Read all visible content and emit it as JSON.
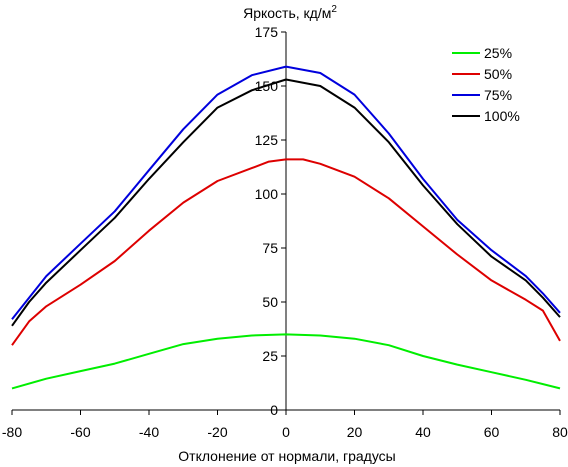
{
  "chart_data": {
    "type": "line",
    "title": "",
    "ylabel_main": "Яркость, кд/м",
    "ylabel_sup": "2",
    "xlabel": "Отклонение от нормали, градусы",
    "xlim": [
      -80,
      80
    ],
    "ylim": [
      0,
      175
    ],
    "xticks": [
      -80,
      -60,
      -40,
      -20,
      0,
      20,
      40,
      60,
      80
    ],
    "yticks": [
      0,
      25,
      50,
      75,
      100,
      125,
      150,
      175
    ],
    "legend_position": "top-right",
    "series": [
      {
        "name": "25%",
        "color": "#00ee00",
        "x": [
          -80,
          -70,
          -60,
          -50,
          -40,
          -30,
          -20,
          -10,
          0,
          10,
          20,
          30,
          40,
          50,
          60,
          70,
          80
        ],
        "y": [
          10,
          14.5,
          18,
          21.5,
          26,
          30.5,
          33,
          34.5,
          35,
          34.5,
          33,
          30,
          25,
          21,
          17.5,
          14,
          10
        ]
      },
      {
        "name": "50%",
        "color": "#dd0000",
        "x": [
          -80,
          -75,
          -70,
          -60,
          -50,
          -40,
          -30,
          -20,
          -10,
          -5,
          0,
          5,
          10,
          20,
          30,
          40,
          50,
          60,
          70,
          75,
          80
        ],
        "y": [
          30,
          41,
          48,
          58,
          69,
          83,
          96,
          106,
          112,
          115,
          116,
          116,
          114,
          108,
          98,
          85,
          72,
          60,
          51,
          46,
          32
        ]
      },
      {
        "name": "75%",
        "color": "#0000dd",
        "x": [
          -80,
          -75,
          -70,
          -60,
          -50,
          -40,
          -30,
          -20,
          -10,
          0,
          10,
          20,
          30,
          40,
          50,
          60,
          70,
          75,
          80
        ],
        "y": [
          42,
          52,
          62,
          77,
          92,
          111,
          130,
          146,
          155,
          159,
          156,
          146,
          128,
          107,
          88,
          74,
          62,
          54,
          45
        ]
      },
      {
        "name": "100%",
        "color": "#000000",
        "x": [
          -80,
          -75,
          -70,
          -60,
          -50,
          -40,
          -30,
          -20,
          -10,
          0,
          10,
          20,
          30,
          40,
          50,
          60,
          70,
          75,
          80
        ],
        "y": [
          39,
          50,
          59,
          74,
          89,
          107,
          124,
          140,
          148,
          153,
          150,
          140,
          124,
          104,
          86,
          71,
          60,
          52,
          43
        ]
      }
    ]
  }
}
